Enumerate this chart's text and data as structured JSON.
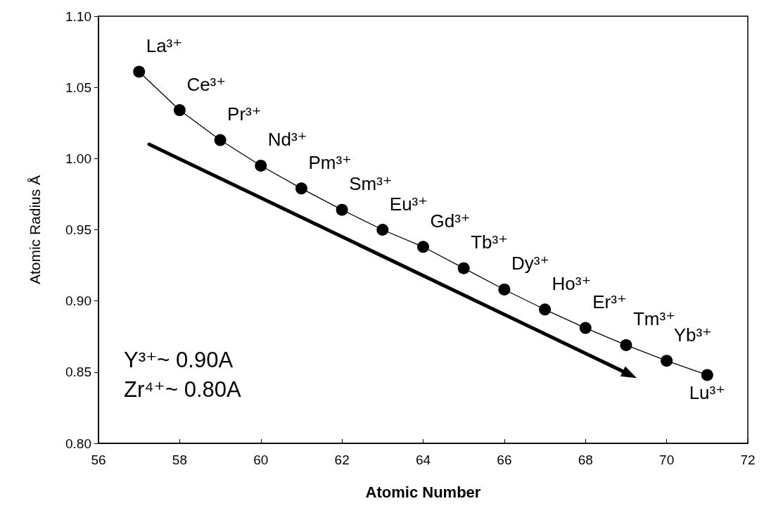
{
  "chart_data": {
    "type": "line",
    "xlabel": "Atomic Number",
    "ylabel": "Atomic Radius Å",
    "x": [
      57,
      58,
      59,
      60,
      61,
      62,
      63,
      64,
      65,
      66,
      67,
      68,
      69,
      70,
      71
    ],
    "series": [
      {
        "color": "#000000",
        "values": [
          1.061,
          1.034,
          1.013,
          0.995,
          0.979,
          0.964,
          0.95,
          0.938,
          0.923,
          0.908,
          0.894,
          0.881,
          0.869,
          0.858,
          0.848
        ]
      }
    ],
    "xlim": [
      56,
      72
    ],
    "xticks": [
      56,
      58,
      60,
      62,
      64,
      66,
      68,
      70,
      72
    ],
    "ylim": [
      0.8,
      1.1
    ],
    "yticks": [
      {
        "value": 0.8,
        "label": "0.80"
      },
      {
        "value": 0.85,
        "label": "0.85"
      },
      {
        "value": 0.9,
        "label": "0.90"
      },
      {
        "value": 0.95,
        "label": "0.95"
      },
      {
        "value": 1.0,
        "label": "1.00"
      },
      {
        "value": 1.05,
        "label": "1.05"
      },
      {
        "value": 1.1,
        "label": "1.10"
      }
    ],
    "grid": false,
    "marker": "circle",
    "line_style": "solid",
    "annotations": [
      {
        "text": "La³⁺",
        "x": 57,
        "y": 1.061
      },
      {
        "text": "Ce³⁺",
        "x": 58,
        "y": 1.034
      },
      {
        "text": "Pr³⁺",
        "x": 59,
        "y": 1.013
      },
      {
        "text": "Nd³⁺",
        "x": 60,
        "y": 0.995
      },
      {
        "text": "Pm³⁺",
        "x": 61,
        "y": 0.979
      },
      {
        "text": "Sm³⁺",
        "x": 62,
        "y": 0.964
      },
      {
        "text": "Eu³⁺",
        "x": 63,
        "y": 0.95
      },
      {
        "text": "Gd³⁺",
        "x": 64,
        "y": 0.938
      },
      {
        "text": "Tb³⁺",
        "x": 65,
        "y": 0.923
      },
      {
        "text": "Dy³⁺",
        "x": 66,
        "y": 0.908
      },
      {
        "text": "Ho³⁺",
        "x": 67,
        "y": 0.894
      },
      {
        "text": "Er³⁺",
        "x": 68,
        "y": 0.881
      },
      {
        "text": "Tm³⁺",
        "x": 69,
        "y": 0.869
      },
      {
        "text": "Yb³⁺",
        "x": 70,
        "y": 0.858
      },
      {
        "text": "Lu³⁺",
        "x": 71,
        "y": 0.848
      },
      "Y³⁺~ 0.90A",
      "Zr⁴⁺~ 0.80A"
    ]
  }
}
